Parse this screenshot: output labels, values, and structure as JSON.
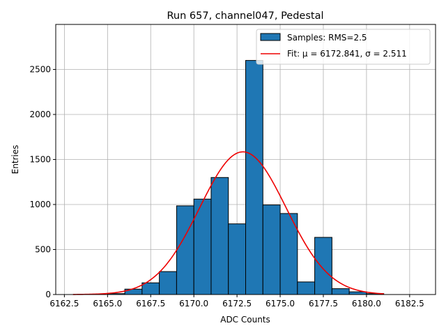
{
  "chart_data": {
    "type": "bar",
    "title": "Run 657, channel047, Pedestal",
    "xlabel": "ADC Counts",
    "ylabel": "Entries",
    "xlim": [
      6162.0,
      6184.0
    ],
    "ylim": [
      0,
      3000
    ],
    "xticks": [
      6162.5,
      6165.0,
      6167.5,
      6170.0,
      6172.5,
      6175.0,
      6177.5,
      6180.0,
      6182.5
    ],
    "xtick_labels": [
      "6162.5",
      "6165.0",
      "6167.5",
      "6170.0",
      "6172.5",
      "6175.0",
      "6177.5",
      "6180.0",
      "6182.5"
    ],
    "yticks": [
      0,
      500,
      1000,
      1500,
      2000,
      2500
    ],
    "ytick_labels": [
      "0",
      "500",
      "1000",
      "1500",
      "2000",
      "2500"
    ],
    "grid": true,
    "bin_edges": [
      6165,
      6166,
      6167,
      6168,
      6169,
      6170,
      6171,
      6172,
      6173,
      6174,
      6175,
      6176,
      6177,
      6178,
      6179,
      6180,
      6181
    ],
    "counts": [
      10,
      60,
      130,
      255,
      985,
      1060,
      1300,
      785,
      2600,
      995,
      900,
      140,
      635,
      65,
      30,
      10
    ],
    "fit": {
      "mu": 6172.841,
      "sigma": 2.511,
      "amplitude": 1585,
      "x_range": [
        6163.0,
        6181.0
      ]
    },
    "legend": {
      "position": "top-right",
      "entries": [
        {
          "label": "Samples: RMS=2.5",
          "type": "patch",
          "color": "#1f77b4"
        },
        {
          "label": "Fit: μ = 6172.841, σ = 2.511",
          "type": "line",
          "color": "#ee0000"
        }
      ]
    },
    "colors": {
      "bar_fill": "#1f77b4",
      "bar_edge": "#000000",
      "fit_line": "#ee0000",
      "grid": "#b0b0b0"
    }
  }
}
